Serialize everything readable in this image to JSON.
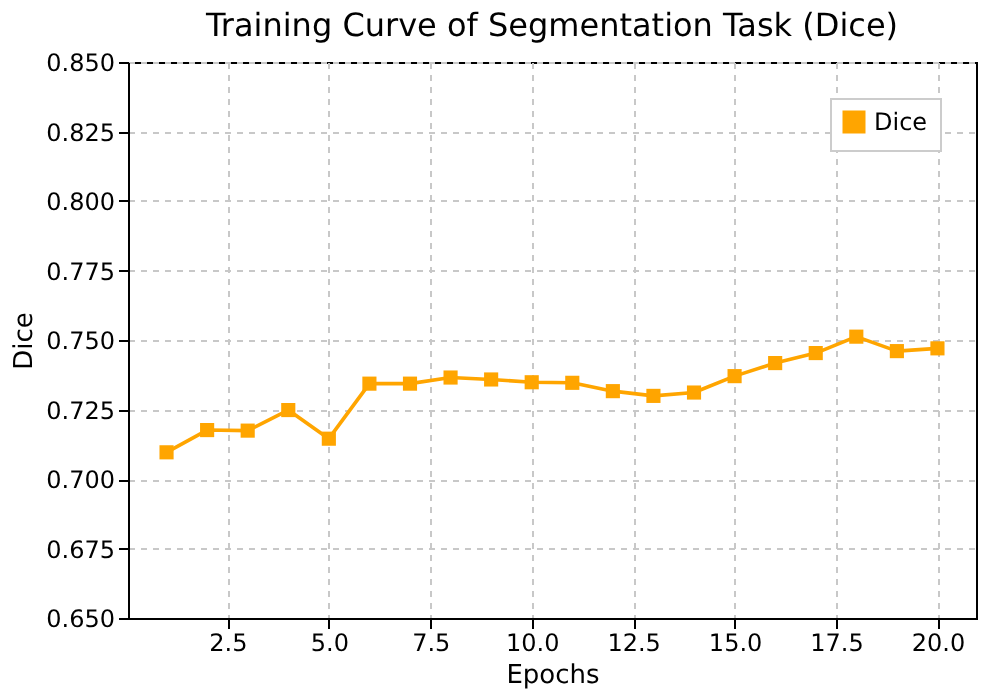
{
  "chart_data": {
    "type": "line",
    "title": "Training Curve of Segmentation Task (Dice)",
    "xlabel": "Epochs",
    "ylabel": "Dice",
    "x": [
      1,
      2,
      3,
      4,
      5,
      6,
      7,
      8,
      9,
      10,
      11,
      12,
      13,
      14,
      15,
      16,
      17,
      18,
      19,
      20
    ],
    "series": [
      {
        "name": "Dice",
        "color": "#ffa500",
        "values": [
          0.7096,
          0.7176,
          0.7174,
          0.7248,
          0.7145,
          0.7343,
          0.7343,
          0.7365,
          0.7358,
          0.7348,
          0.7346,
          0.7316,
          0.7299,
          0.7311,
          0.737,
          0.7417,
          0.7453,
          0.7512,
          0.746,
          0.747
        ]
      }
    ],
    "xlim": [
      0.05,
      20.95
    ],
    "xticks": [
      2.5,
      {
        "value": 5,
        "label": "5.0"
      },
      7.5,
      {
        "value": 10,
        "label": "10.0"
      },
      12.5,
      {
        "value": 15,
        "label": "15.0"
      },
      17.5,
      {
        "value": 20,
        "label": "20.0"
      }
    ],
    "ylim": [
      0.65,
      0.85
    ],
    "yticks": [
      {
        "value": 0.65,
        "label": "0.650"
      },
      0.675,
      {
        "value": 0.7,
        "label": "0.700"
      },
      0.725,
      {
        "value": 0.75,
        "label": "0.750"
      },
      0.775,
      {
        "value": 0.8,
        "label": "0.800"
      },
      0.825,
      {
        "value": 0.85,
        "label": "0.850"
      }
    ],
    "grid": true,
    "legend": "top right",
    "marker": "square",
    "line_style": "solid"
  }
}
